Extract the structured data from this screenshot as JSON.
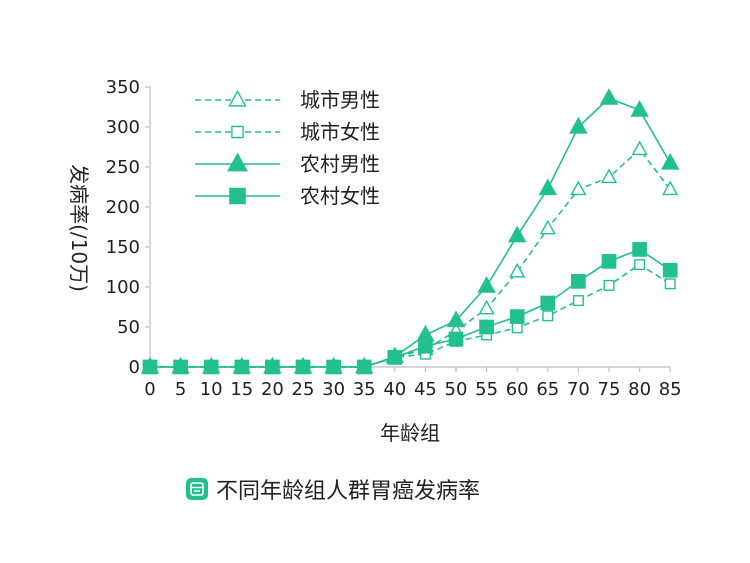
{
  "caption": {
    "text": "不同年龄组人群胃癌发病率",
    "icon": "chart-icon"
  },
  "colors": {
    "series": "#22c08f",
    "axis": "#bfbfbf",
    "text": "#222222"
  },
  "chart_data": {
    "type": "line",
    "title": "",
    "xlabel": "年龄组",
    "ylabel": "发病率(/10万)",
    "ylim": [
      0,
      350
    ],
    "yticks": [
      0,
      50,
      100,
      150,
      200,
      250,
      300,
      350
    ],
    "categories": [
      "0",
      "5",
      "10",
      "15",
      "20",
      "25",
      "30",
      "35",
      "40",
      "45",
      "50",
      "55",
      "60",
      "65",
      "70",
      "75",
      "80",
      "85"
    ],
    "legend_position": "top-left",
    "grid": false,
    "series": [
      {
        "name": "城市男性",
        "line": "dashed",
        "marker": "triangle-open",
        "values": [
          0,
          0,
          0,
          0,
          0,
          0,
          0,
          0,
          12,
          22,
          45,
          73,
          119,
          173,
          222,
          237,
          272,
          222
        ]
      },
      {
        "name": "城市女性",
        "line": "dashed",
        "marker": "square-open",
        "values": [
          0,
          0,
          0,
          0,
          0,
          0,
          0,
          0,
          12,
          16,
          32,
          40,
          49,
          64,
          83,
          102,
          128,
          104
        ]
      },
      {
        "name": "农村男性",
        "line": "solid",
        "marker": "triangle-filled",
        "values": [
          0,
          0,
          0,
          0,
          0,
          0,
          0,
          0,
          13,
          40,
          58,
          101,
          164,
          223,
          300,
          336,
          321,
          255
        ]
      },
      {
        "name": "农村女性",
        "line": "solid",
        "marker": "square-filled",
        "values": [
          0,
          0,
          0,
          0,
          0,
          0,
          0,
          0,
          12,
          26,
          35,
          50,
          63,
          80,
          107,
          132,
          147,
          121
        ]
      }
    ]
  }
}
